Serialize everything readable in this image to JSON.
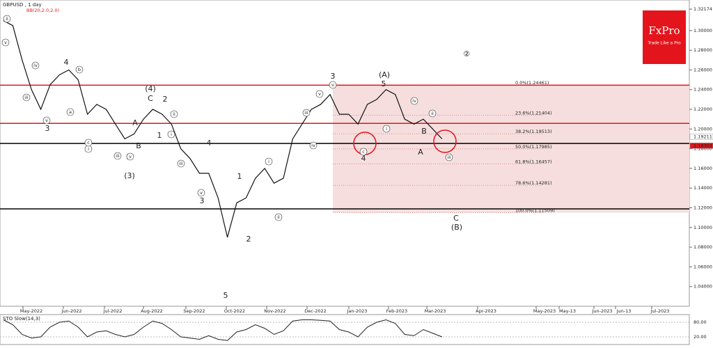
{
  "chart_data": {
    "type": "line",
    "title": "GBPUSD , 1 day",
    "indicator": "BB(20,2.0,2.0)",
    "logo": {
      "name": "FxPro",
      "tagline": "Trade Like a Pro",
      "color": "#e3141b"
    },
    "ylim": [
      1.02,
      1.331
    ],
    "yticks": [
      {
        "value": 1.04,
        "label": "1.04000"
      },
      {
        "value": 1.06,
        "label": "1.06000"
      },
      {
        "value": 1.08,
        "label": "1.08000"
      },
      {
        "value": 1.1,
        "label": "1.10000"
      },
      {
        "value": 1.12,
        "label": "1.12000"
      },
      {
        "value": 1.14,
        "label": "1.14000"
      },
      {
        "value": 1.16,
        "label": "1.16000"
      },
      {
        "value": 1.18,
        "label": "1.18000"
      },
      {
        "value": 1.2,
        "label": "1.20000"
      },
      {
        "value": 1.22,
        "label": "1.22000"
      },
      {
        "value": 1.24,
        "label": "1.24000"
      },
      {
        "value": 1.26,
        "label": "1.26000"
      },
      {
        "value": 1.28,
        "label": "1.28000"
      },
      {
        "value": 1.3,
        "label": "1.30000"
      },
      {
        "value": 1.32174,
        "label": "1.32174"
      }
    ],
    "price_markers": [
      {
        "value": 1.19211,
        "label": "1.19211",
        "color": "#ffffff"
      },
      {
        "value": 1.18303,
        "label": "1.18303",
        "color": "#e3141b"
      }
    ],
    "x_labels": [
      "May-2022",
      "Jun-2022",
      "Jul-2022",
      "Aug-2022",
      "Sep-2022",
      "Oct-2022",
      "Nov-2022",
      "Dec-2022",
      "Jan-2023",
      "Feb-2023",
      "Mar-2023",
      "Apr-2023",
      "May-2023",
      "May-13",
      "Jun-2023",
      "Jun-13",
      "Jul-2023"
    ],
    "series": [
      {
        "color": "#111111",
        "values": [
          1.31,
          1.305,
          1.27,
          1.24,
          1.22,
          1.245,
          1.255,
          1.26,
          1.25,
          1.215,
          1.225,
          1.22,
          1.205,
          1.19,
          1.195,
          1.21,
          1.22,
          1.215,
          1.205,
          1.18,
          1.17,
          1.155,
          1.155,
          1.13,
          1.09,
          1.125,
          1.13,
          1.15,
          1.16,
          1.145,
          1.15,
          1.19,
          1.205,
          1.22,
          1.225,
          1.235,
          1.215,
          1.215,
          1.205,
          1.225,
          1.23,
          1.24,
          1.235,
          1.21,
          1.205,
          1.21,
          1.2,
          1.19
        ]
      }
    ],
    "levels": [
      {
        "value": 1.2445,
        "color": "#e3141b"
      },
      {
        "value": 1.2057,
        "color": "#e3141b"
      },
      {
        "value": 1.1853,
        "color": "#000000"
      },
      {
        "value": 1.1189,
        "color": "#000000"
      }
    ],
    "fib_levels": [
      {
        "value": 1.24461,
        "label": "0.0%(1.24461)"
      },
      {
        "value": 1.21404,
        "label": "23.6%(1.21404)"
      },
      {
        "value": 1.19513,
        "label": "38.2%(1.19513)"
      },
      {
        "value": 1.17985,
        "label": "50.0%(1.17985)"
      },
      {
        "value": 1.16457,
        "label": "61.8%(1.16457)"
      },
      {
        "value": 1.14281,
        "label": "78.6%(1.14281)"
      },
      {
        "value": 1.11509,
        "label": "100.0%(1.11509)"
      }
    ],
    "fib_zone_color": "#f6dede",
    "annotations": [
      {
        "text": "4",
        "style": "plain"
      },
      {
        "text": "3",
        "style": "plain"
      },
      {
        "text": "(4)",
        "style": "plain"
      },
      {
        "text": "C",
        "style": "plain"
      },
      {
        "text": "2",
        "style": "plain"
      },
      {
        "text": "A",
        "style": "plain"
      },
      {
        "text": "B",
        "style": "plain"
      },
      {
        "text": "1",
        "style": "plain"
      },
      {
        "text": "5",
        "style": "plain"
      },
      {
        "text": "(3)",
        "style": "plain"
      },
      {
        "text": "4",
        "style": "plain"
      },
      {
        "text": "3",
        "style": "plain"
      },
      {
        "text": "1",
        "style": "plain"
      },
      {
        "text": "2",
        "style": "plain"
      },
      {
        "text": "5",
        "style": "plain"
      },
      {
        "text": "3",
        "style": "plain"
      },
      {
        "text": "(A)",
        "style": "plain"
      },
      {
        "text": "5",
        "style": "plain"
      },
      {
        "text": "4",
        "style": "plain"
      },
      {
        "text": "A",
        "style": "plain"
      },
      {
        "text": "B",
        "style": "plain"
      },
      {
        "text": "C",
        "style": "plain"
      },
      {
        "text": "(B)",
        "style": "plain"
      },
      {
        "text": "②",
        "style": "plain"
      },
      {
        "text": "ii",
        "style": "circled"
      },
      {
        "text": "v",
        "style": "circled"
      },
      {
        "text": "iv",
        "style": "circled"
      },
      {
        "text": "iii",
        "style": "circled"
      },
      {
        "text": "v",
        "style": "circled"
      },
      {
        "text": "i",
        "style": "circled"
      },
      {
        "text": "b",
        "style": "circled"
      },
      {
        "text": "a",
        "style": "circled"
      },
      {
        "text": "c",
        "style": "circled"
      },
      {
        "text": "iii",
        "style": "circled"
      },
      {
        "text": "v",
        "style": "circled"
      },
      {
        "text": "ii",
        "style": "circled"
      },
      {
        "text": "i",
        "style": "circled"
      },
      {
        "text": "iii",
        "style": "circled"
      },
      {
        "text": "v",
        "style": "circled"
      },
      {
        "text": "i",
        "style": "circled"
      },
      {
        "text": "ii",
        "style": "circled"
      },
      {
        "text": "iii",
        "style": "circled"
      },
      {
        "text": "v",
        "style": "circled"
      },
      {
        "text": "iv",
        "style": "circled"
      },
      {
        "text": "v",
        "style": "circled"
      },
      {
        "text": "c",
        "style": "circled"
      },
      {
        "text": "i",
        "style": "circled"
      },
      {
        "text": "iii",
        "style": "circled"
      },
      {
        "text": "ii",
        "style": "circled"
      },
      {
        "text": "iv",
        "style": "circled"
      }
    ],
    "stochastic": {
      "title": "STO Slow(14,3)",
      "color": "#222222",
      "ylim": [
        0,
        100
      ],
      "yticks": [
        {
          "value": 80,
          "label": "80.00"
        },
        {
          "value": 20,
          "label": "20.00"
        }
      ],
      "values": [
        90,
        70,
        30,
        15,
        20,
        60,
        80,
        85,
        60,
        20,
        40,
        45,
        30,
        20,
        30,
        60,
        85,
        75,
        50,
        20,
        15,
        10,
        25,
        10,
        5,
        40,
        50,
        70,
        55,
        30,
        45,
        85,
        90,
        90,
        88,
        85,
        50,
        40,
        20,
        60,
        80,
        90,
        75,
        30,
        25,
        50,
        35,
        20
      ]
    }
  }
}
